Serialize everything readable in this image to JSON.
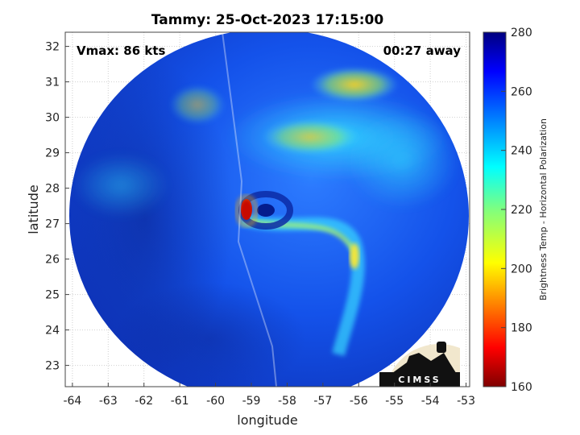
{
  "chart_data": {
    "type": "heatmap",
    "title": "Tammy: 25-Oct-2023 17:15:00",
    "xlabel": "longitude",
    "ylabel": "latitude",
    "xlim": [
      -64.2,
      -52.9
    ],
    "ylim": [
      22.4,
      32.4
    ],
    "xticks": [
      -64,
      -63,
      -62,
      -61,
      -60,
      -59,
      -58,
      -57,
      -56,
      -55,
      -54,
      -53
    ],
    "yticks": [
      23,
      24,
      25,
      26,
      27,
      28,
      29,
      30,
      31,
      32
    ],
    "grid": true,
    "colorbar": {
      "label": "Brightness Temp - Horizontal Polarization",
      "range": [
        160,
        280
      ],
      "ticks": [
        160,
        180,
        200,
        220,
        240,
        260,
        280
      ]
    },
    "storm_center": {
      "lon": -58.6,
      "lat": 27.35
    },
    "warm_band": {
      "lon_start": -59.2,
      "lat_start": 27.0,
      "lon_end": -56.0,
      "lat_end": 26.1
    },
    "swath_edge_lon": -58.7,
    "annotations": [
      {
        "text": "Vmax: 86 kts",
        "position": "top-left"
      },
      {
        "text": "00:27 away",
        "position": "top-right"
      }
    ]
  },
  "logo": {
    "text": "CIMSS"
  }
}
